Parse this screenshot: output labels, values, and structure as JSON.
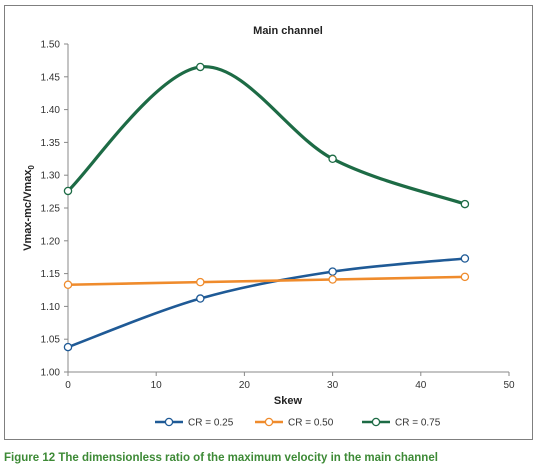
{
  "chart_data": {
    "type": "line",
    "title": "Main channel",
    "xlabel": "Skew",
    "ylabel_main": "Vmax-mc/Vmax",
    "ylabel_sub": "0",
    "xlim": [
      0,
      50
    ],
    "ylim": [
      1.0,
      1.5
    ],
    "xticks": [
      "0",
      "10",
      "20",
      "30",
      "40",
      "50"
    ],
    "yticks": [
      "1.00",
      "1.05",
      "1.10",
      "1.15",
      "1.20",
      "1.25",
      "1.30",
      "1.35",
      "1.40",
      "1.45",
      "1.50"
    ],
    "grid": false,
    "legend_position": "bottom",
    "series": [
      {
        "name": "CR = 0.25",
        "color": "#1f5a96",
        "x": [
          0,
          15,
          30,
          45
        ],
        "y": [
          1.038,
          1.112,
          1.153,
          1.173
        ]
      },
      {
        "name": "CR = 0.50",
        "color": "#ef8b2c",
        "x": [
          0,
          15,
          30,
          45
        ],
        "y": [
          1.133,
          1.137,
          1.141,
          1.145
        ]
      },
      {
        "name": "CR = 0.75",
        "color": "#1d6b45",
        "x": [
          0,
          15,
          30,
          45
        ],
        "y": [
          1.276,
          1.465,
          1.325,
          1.256
        ]
      }
    ]
  },
  "caption": {
    "label": "Figure 12",
    "text": " The dimensionless ratio of the maximum velocity in the main channel"
  }
}
